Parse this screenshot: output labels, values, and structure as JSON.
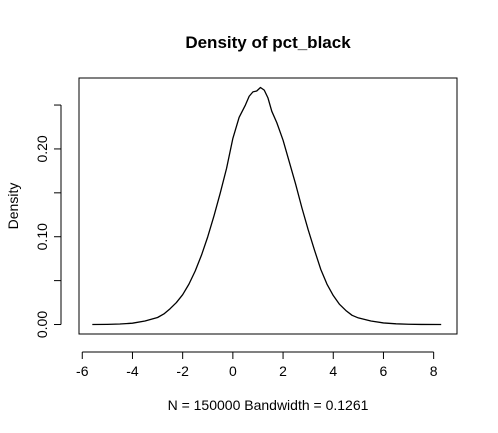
{
  "chart_data": {
    "type": "line",
    "title": "Density of pct_black",
    "xlabel": "N = 150000   Bandwidth = 0.1261",
    "ylabel": "Density",
    "xlim": [
      -6.13,
      8.93
    ],
    "ylim": [
      -0.0108,
      0.2808
    ],
    "x_ticks": [
      -6,
      -4,
      -2,
      0,
      2,
      4,
      6,
      8
    ],
    "x_tick_labels": [
      "-6",
      "-4",
      "-2",
      "0",
      "2",
      "4",
      "6",
      "8"
    ],
    "y_ticks": [
      0.0,
      0.05,
      0.1,
      0.15,
      0.2,
      0.25
    ],
    "y_tick_labels": [
      "0.00",
      "",
      "0.10",
      "",
      "0.20",
      ""
    ],
    "grid": false,
    "legend": "none",
    "color": "#000000",
    "series": [
      {
        "x": [
          -5.6,
          -5.0,
          -4.5,
          -4.0,
          -3.5,
          -3.0,
          -2.75,
          -2.5,
          -2.25,
          -2.0,
          -1.75,
          -1.5,
          -1.25,
          -1.0,
          -0.75,
          -0.5,
          -0.25,
          0.0,
          0.25,
          0.5,
          0.65,
          0.8,
          0.95,
          1.1,
          1.25,
          1.4,
          1.55,
          1.75,
          2.0,
          2.25,
          2.5,
          2.75,
          3.0,
          3.25,
          3.5,
          3.75,
          4.0,
          4.25,
          4.5,
          4.75,
          5.0,
          5.5,
          6.0,
          6.5,
          7.0,
          7.5,
          8.3
        ],
        "y": [
          0.0,
          0.0002,
          0.0006,
          0.0015,
          0.004,
          0.008,
          0.012,
          0.018,
          0.025,
          0.034,
          0.046,
          0.061,
          0.079,
          0.1,
          0.124,
          0.15,
          0.178,
          0.212,
          0.236,
          0.25,
          0.26,
          0.265,
          0.266,
          0.27,
          0.267,
          0.258,
          0.243,
          0.23,
          0.21,
          0.185,
          0.16,
          0.133,
          0.108,
          0.085,
          0.063,
          0.046,
          0.033,
          0.023,
          0.016,
          0.0105,
          0.0075,
          0.004,
          0.0018,
          0.0008,
          0.0003,
          0.0001,
          0.0
        ]
      }
    ]
  }
}
